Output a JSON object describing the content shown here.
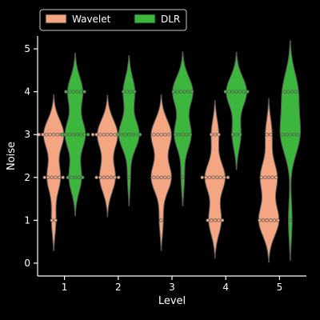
{
  "chart_data": {
    "type": "violin",
    "xlabel": "Level",
    "ylabel": "Noise",
    "categories": [
      "1",
      "2",
      "3",
      "4",
      "5"
    ],
    "ylim": [
      -0.3,
      5.3
    ],
    "yticks": [
      "0",
      "1",
      "2",
      "3",
      "4",
      "5"
    ],
    "grid": false,
    "legend_position": "top-left",
    "series": [
      {
        "name": "Wavelet",
        "color": "#f4a582",
        "points": [
          {
            "level": "1",
            "counts": {
              "1": 2,
              "2": 6,
              "3": 9,
              "4": 0,
              "5": 0
            }
          },
          {
            "level": "2",
            "counts": {
              "1": 0,
              "2": 7,
              "3": 9,
              "4": 0,
              "5": 0
            }
          },
          {
            "level": "3",
            "counts": {
              "1": 1,
              "2": 5,
              "3": 5,
              "4": 0,
              "5": 0
            }
          },
          {
            "level": "4",
            "counts": {
              "1": 5,
              "2": 8,
              "3": 3,
              "4": 0,
              "5": 0
            }
          },
          {
            "level": "5",
            "counts": {
              "1": 6,
              "2": 5,
              "3": 2,
              "4": 0,
              "5": 0
            }
          }
        ]
      },
      {
        "name": "DLR",
        "color": "#3cb63c",
        "points": [
          {
            "level": "1",
            "counts": {
              "1": 0,
              "2": 5,
              "3": 8,
              "4": 6,
              "5": 0
            }
          },
          {
            "level": "2",
            "counts": {
              "1": 0,
              "2": 1,
              "3": 7,
              "4": 4,
              "5": 0
            }
          },
          {
            "level": "3",
            "counts": {
              "1": 0,
              "2": 1,
              "3": 5,
              "4": 6,
              "5": 0
            }
          },
          {
            "level": "4",
            "counts": {
              "1": 0,
              "2": 0,
              "3": 3,
              "4": 7,
              "5": 0
            }
          },
          {
            "level": "5",
            "counts": {
              "1": 1,
              "2": 0,
              "3": 5,
              "4": 4,
              "5": 0
            }
          }
        ]
      }
    ]
  }
}
